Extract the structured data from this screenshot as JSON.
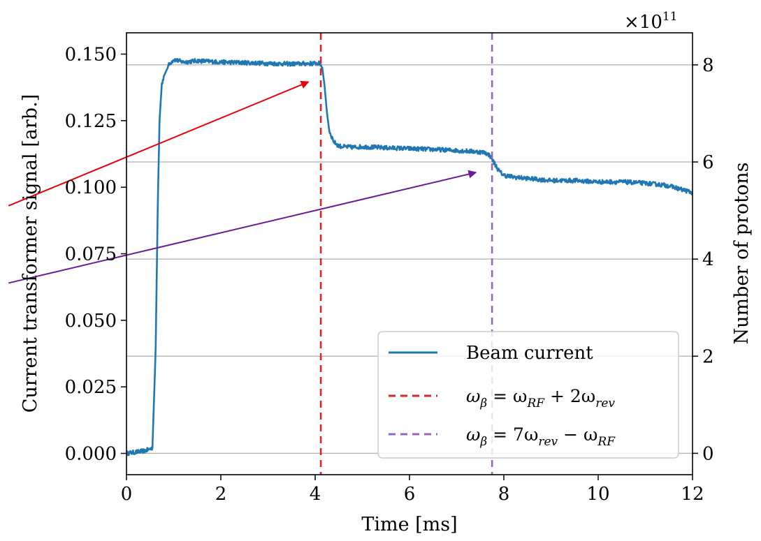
{
  "chart_data": {
    "type": "line",
    "title": "",
    "xlabel": "Time [ms]",
    "ylabel": "Current transformer signal [arb.]",
    "y2label": "Number of protons",
    "y2_multiplier_label": "×10",
    "y2_multiplier_exponent": "11",
    "xlim": [
      0,
      12
    ],
    "ylim": [
      -0.008,
      0.158
    ],
    "y2lim": [
      -0.44,
      8.66
    ],
    "x_ticks": [
      0,
      2,
      4,
      6,
      8,
      10,
      12
    ],
    "x_tick_labels": [
      "0",
      "2",
      "4",
      "6",
      "8",
      "10",
      "12"
    ],
    "y_ticks": [
      0.0,
      0.025,
      0.05,
      0.075,
      0.1,
      0.125,
      0.15
    ],
    "y_tick_labels": [
      "0.000",
      "0.025",
      "0.050",
      "0.075",
      "0.100",
      "0.125",
      "0.150"
    ],
    "y2_ticks": [
      0,
      2,
      4,
      6,
      8
    ],
    "y2_tick_labels": [
      "0",
      "2",
      "4",
      "6",
      "8"
    ],
    "grid": "horizontal lines at right-axis ticks",
    "legend_position": "lower right",
    "series": [
      {
        "name": "Beam current",
        "color": "#1f77b4",
        "style": "solid",
        "x": [
          0.0,
          0.2,
          0.4,
          0.55,
          0.62,
          0.66,
          0.7,
          0.75,
          0.8,
          0.9,
          1.0,
          1.2,
          1.5,
          2.0,
          2.5,
          3.0,
          3.5,
          4.0,
          4.1,
          4.15,
          4.2,
          4.25,
          4.3,
          4.4,
          4.5,
          4.6,
          4.8,
          5.0,
          5.5,
          6.0,
          6.5,
          7.0,
          7.3,
          7.5,
          7.6,
          7.7,
          7.8,
          7.9,
          8.0,
          8.2,
          8.5,
          9.0,
          9.5,
          10.0,
          10.5,
          11.0,
          11.3,
          11.5,
          11.7,
          11.9,
          12.0
        ],
        "y": [
          0.0,
          0.0005,
          0.001,
          0.002,
          0.04,
          0.09,
          0.125,
          0.139,
          0.142,
          0.146,
          0.148,
          0.147,
          0.1475,
          0.147,
          0.1468,
          0.1465,
          0.1463,
          0.1465,
          0.1465,
          0.145,
          0.138,
          0.128,
          0.121,
          0.117,
          0.1155,
          0.1152,
          0.115,
          0.1152,
          0.1148,
          0.1145,
          0.1142,
          0.1138,
          0.1135,
          0.1132,
          0.113,
          0.112,
          0.109,
          0.106,
          0.1045,
          0.1038,
          0.1033,
          0.1025,
          0.1025,
          0.102,
          0.102,
          0.1015,
          0.101,
          0.1005,
          0.0995,
          0.0985,
          0.098
        ]
      }
    ],
    "vertical_lines": [
      {
        "x": 4.12,
        "color": "#d62728",
        "style": "dashed",
        "label_lhs": "ω",
        "label_lhs_sub": "β",
        "label_eq": " = ω",
        "label_rf_sub": "RF",
        "label_mid": " + 2ω",
        "label_rev_sub": "rev",
        "label_tail": "",
        "label_tail_sub": ""
      },
      {
        "x": 7.75,
        "color": "#9467bd",
        "style": "dashed",
        "label_lhs": "ω",
        "label_lhs_sub": "β",
        "label_eq": " = 7ω",
        "label_rf_sub": "rev",
        "label_mid": " − ω",
        "label_rev_sub": "RF",
        "label_tail": "",
        "label_tail_sub": ""
      }
    ],
    "annotations": [
      {
        "type": "arrow",
        "color": "#e8000b",
        "from_x": -2.5,
        "from_y": 0.093,
        "to_x": 3.85,
        "to_y": 0.1395
      },
      {
        "type": "arrow",
        "color": "#6a1b9a",
        "from_x": -2.5,
        "from_y": 0.064,
        "to_x": 7.4,
        "to_y": 0.1055
      }
    ]
  }
}
